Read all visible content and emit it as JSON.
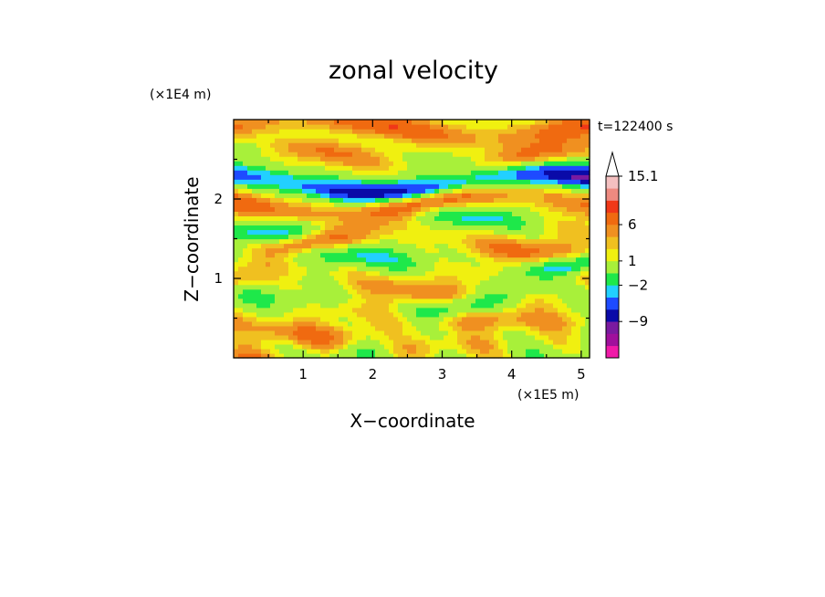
{
  "chart_data": {
    "type": "heatmap",
    "title": "zonal velocity",
    "xlabel": "X−coordinate",
    "ylabel": "Z−coordinate",
    "x_multiplier": "(×1E5 m)",
    "y_multiplier": "(×1E4 m)",
    "time_label": "t=122400 s",
    "xlim": [
      0,
      5.12
    ],
    "ylim": [
      0,
      3.0
    ],
    "x_ticks": [
      1,
      2,
      3,
      4,
      5
    ],
    "y_ticks": [
      1,
      2
    ],
    "x_tick_labels": [
      "1",
      "2",
      "3",
      "4",
      "5"
    ],
    "y_tick_labels": [
      "1",
      "2"
    ],
    "colorbar": {
      "colors": [
        "#f01aa8",
        "#a0109c",
        "#7a1aa0",
        "#0a0aa8",
        "#1e4bff",
        "#22d0ff",
        "#1ee84a",
        "#a8f03a",
        "#f0f010",
        "#f0c020",
        "#f09020",
        "#f06a10",
        "#f03818",
        "#ee8a80",
        "#f4c0c0"
      ],
      "labels": [
        "15.1",
        "6",
        "1",
        "−2",
        "−9"
      ],
      "extend_top": true
    },
    "bands": [
      {
        "z": 2.9,
        "value": 4,
        "amp": 2.2
      },
      {
        "z": 2.55,
        "value": 1.5,
        "amp": 2.5
      },
      {
        "z": 2.2,
        "value": -7,
        "amp": 2.5
      },
      {
        "z": 1.95,
        "value": 4,
        "amp": 2.2
      },
      {
        "z": 1.7,
        "value": -1.5,
        "amp": 3
      },
      {
        "z": 1.45,
        "value": 2,
        "amp": 2.5
      },
      {
        "z": 1.2,
        "value": -2,
        "amp": 3
      },
      {
        "z": 0.95,
        "value": 1.5,
        "amp": 2.5
      },
      {
        "z": 0.7,
        "value": -1,
        "amp": 3
      },
      {
        "z": 0.4,
        "value": 2,
        "amp": 2.5
      },
      {
        "z": 0.1,
        "value": 0.5,
        "amp": 3
      }
    ]
  }
}
